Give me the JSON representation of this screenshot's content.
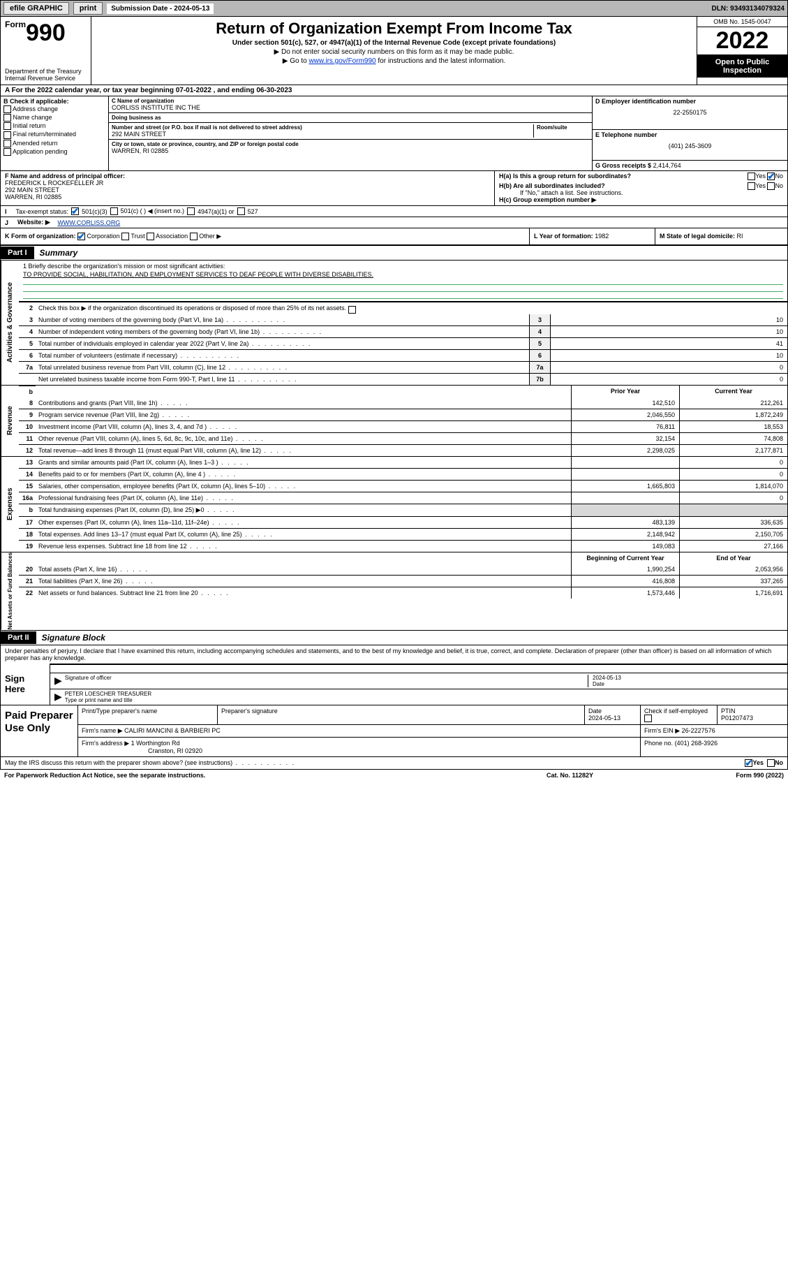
{
  "topbar": {
    "efile": "efile GRAPHIC",
    "print": "print",
    "submission": "Submission Date - 2024-05-13",
    "dln": "DLN: 93493134079324"
  },
  "header": {
    "form_prefix": "Form",
    "form_num": "990",
    "dept": "Department of the Treasury",
    "irs": "Internal Revenue Service",
    "title": "Return of Organization Exempt From Income Tax",
    "sub": "Under section 501(c), 527, or 4947(a)(1) of the Internal Revenue Code (except private foundations)",
    "note1": "▶ Do not enter social security numbers on this form as it may be made public.",
    "note2_pre": "▶ Go to ",
    "note2_link": "www.irs.gov/Form990",
    "note2_post": " for instructions and the latest information.",
    "omb": "OMB No. 1545-0047",
    "year": "2022",
    "otp": "Open to Public Inspection"
  },
  "a": {
    "text": "A For the 2022 calendar year, or tax year beginning 07-01-2022    , and ending 06-30-2023"
  },
  "b": {
    "hdr": "B Check if applicable:",
    "items": [
      "Address change",
      "Name change",
      "Initial return",
      "Final return/terminated",
      "Amended return",
      "Application pending"
    ]
  },
  "c": {
    "lbl_name": "C Name of organization",
    "name": "CORLISS INSTITUTE INC THE",
    "lbl_dba": "Doing business as",
    "dba": "",
    "lbl_addr": "Number and street (or P.O. box if mail is not delivered to street address)",
    "lbl_room": "Room/suite",
    "addr": "292 MAIN STREET",
    "lbl_city": "City or town, state or province, country, and ZIP or foreign postal code",
    "city": "WARREN, RI  02885"
  },
  "d": {
    "lbl": "D Employer identification number",
    "val": "22-2550175"
  },
  "e": {
    "lbl": "E Telephone number",
    "val": "(401) 245-3609"
  },
  "g": {
    "lbl": "G Gross receipts $",
    "val": "2,414,764"
  },
  "f": {
    "lbl": "F Name and address of principal officer:",
    "name": "FREDERICK L ROCKEFELLER JR",
    "addr": "292 MAIN STREET",
    "city": "WARREN, RI  02885"
  },
  "h": {
    "a_lbl": "H(a)  Is this a group return for subordinates?",
    "b_lbl": "H(b)  Are all subordinates included?",
    "b_note": "If \"No,\" attach a list. See instructions.",
    "c_lbl": "H(c)  Group exemption number ▶"
  },
  "i": {
    "lbl": "Tax-exempt status:",
    "c501c3": "501(c)(3)",
    "c501c": "501(c) (   ) ◀ (insert no.)",
    "c4947": "4947(a)(1) or",
    "c527": "527"
  },
  "j": {
    "lbl": "Website: ▶",
    "val": "WWW.CORLISS.ORG"
  },
  "k": {
    "lbl": "K Form of organization:",
    "corp": "Corporation",
    "trust": "Trust",
    "assoc": "Association",
    "other": "Other ▶"
  },
  "l": {
    "lbl": "L Year of formation:",
    "val": "1982"
  },
  "m": {
    "lbl": "M State of legal domicile:",
    "val": "RI"
  },
  "part1": {
    "tab": "Part I",
    "title": "Summary"
  },
  "mission": {
    "lbl": "1   Briefly describe the organization's mission or most significant activities:",
    "text": "TO PROVIDE SOCIAL, HABILITATION, AND EMPLOYMENT SERVICES TO DEAF PEOPLE WITH DIVERSE DISABILITIES."
  },
  "gov": {
    "tab": "Activities & Governance",
    "l2": "Check this box ▶        if the organization discontinued its operations or disposed of more than 25% of its net assets.",
    "rows": [
      {
        "n": "3",
        "t": "Number of voting members of the governing body (Part VI, line 1a)",
        "b": "3",
        "v": "10"
      },
      {
        "n": "4",
        "t": "Number of independent voting members of the governing body (Part VI, line 1b)",
        "b": "4",
        "v": "10"
      },
      {
        "n": "5",
        "t": "Total number of individuals employed in calendar year 2022 (Part V, line 2a)",
        "b": "5",
        "v": "41"
      },
      {
        "n": "6",
        "t": "Total number of volunteers (estimate if necessary)",
        "b": "6",
        "v": "10"
      },
      {
        "n": "7a",
        "t": "Total unrelated business revenue from Part VIII, column (C), line 12",
        "b": "7a",
        "v": "0"
      },
      {
        "n": "",
        "t": "Net unrelated business taxable income from Form 990-T, Part I, line 11",
        "b": "7b",
        "v": "0"
      }
    ]
  },
  "hdrs": {
    "prior": "Prior Year",
    "current": "Current Year",
    "begin": "Beginning of Current Year",
    "end": "End of Year"
  },
  "rev": {
    "tab": "Revenue",
    "rows": [
      {
        "n": "8",
        "t": "Contributions and grants (Part VIII, line 1h)",
        "p": "142,510",
        "c": "212,261"
      },
      {
        "n": "9",
        "t": "Program service revenue (Part VIII, line 2g)",
        "p": "2,046,550",
        "c": "1,872,249"
      },
      {
        "n": "10",
        "t": "Investment income (Part VIII, column (A), lines 3, 4, and 7d )",
        "p": "76,811",
        "c": "18,553"
      },
      {
        "n": "11",
        "t": "Other revenue (Part VIII, column (A), lines 5, 6d, 8c, 9c, 10c, and 11e)",
        "p": "32,154",
        "c": "74,808"
      },
      {
        "n": "12",
        "t": "Total revenue—add lines 8 through 11 (must equal Part VIII, column (A), line 12)",
        "p": "2,298,025",
        "c": "2,177,871"
      }
    ]
  },
  "exp": {
    "tab": "Expenses",
    "rows": [
      {
        "n": "13",
        "t": "Grants and similar amounts paid (Part IX, column (A), lines 1–3 )",
        "p": "",
        "c": "0"
      },
      {
        "n": "14",
        "t": "Benefits paid to or for members (Part IX, column (A), line 4 )",
        "p": "",
        "c": "0"
      },
      {
        "n": "15",
        "t": "Salaries, other compensation, employee benefits (Part IX, column (A), lines 5–10)",
        "p": "1,665,803",
        "c": "1,814,070"
      },
      {
        "n": "16a",
        "t": "Professional fundraising fees (Part IX, column (A), line 11e)",
        "p": "",
        "c": "0"
      },
      {
        "n": "b",
        "t": "Total fundraising expenses (Part IX, column (D), line 25) ▶0",
        "p": "",
        "c": "",
        "shade": true
      },
      {
        "n": "17",
        "t": "Other expenses (Part IX, column (A), lines 11a–11d, 11f–24e)",
        "p": "483,139",
        "c": "336,635"
      },
      {
        "n": "18",
        "t": "Total expenses. Add lines 13–17 (must equal Part IX, column (A), line 25)",
        "p": "2,148,942",
        "c": "2,150,705"
      },
      {
        "n": "19",
        "t": "Revenue less expenses. Subtract line 18 from line 12",
        "p": "149,083",
        "c": "27,166"
      }
    ]
  },
  "net": {
    "tab": "Net Assets or Fund Balances",
    "rows": [
      {
        "n": "20",
        "t": "Total assets (Part X, line 16)",
        "p": "1,990,254",
        "c": "2,053,956"
      },
      {
        "n": "21",
        "t": "Total liabilities (Part X, line 26)",
        "p": "416,808",
        "c": "337,265"
      },
      {
        "n": "22",
        "t": "Net assets or fund balances. Subtract line 21 from line 20",
        "p": "1,573,446",
        "c": "1,716,691"
      }
    ]
  },
  "part2": {
    "tab": "Part II",
    "title": "Signature Block"
  },
  "sig": {
    "decl": "Under penalties of perjury, I declare that I have examined this return, including accompanying schedules and statements, and to the best of my knowledge and belief, it is true, correct, and complete. Declaration of preparer (other than officer) is based on all information of which preparer has any knowledge.",
    "here": "Sign Here",
    "sig_lbl": "Signature of officer",
    "date_lbl": "Date",
    "date": "2024-05-13",
    "name": "PETER LOESCHER  TREASURER",
    "name_lbl": "Type or print name and title"
  },
  "prep": {
    "left": "Paid Preparer Use Only",
    "h_print": "Print/Type preparer's name",
    "h_sig": "Preparer's signature",
    "h_date": "Date",
    "date": "2024-05-13",
    "h_check": "Check        if self-employed",
    "h_ptin": "PTIN",
    "ptin": "P01207473",
    "firm_lbl": "Firm's name     ▶",
    "firm": "CALIRI MANCINI & BARBIERI PC",
    "ein_lbl": "Firm's EIN ▶",
    "ein": "26-2227576",
    "addr_lbl": "Firm's address ▶",
    "addr1": "1 Worthington Rd",
    "addr2": "Cranston, RI  02920",
    "phone_lbl": "Phone no.",
    "phone": "(401) 268-3926"
  },
  "footer": {
    "q": "May the IRS discuss this return with the preparer shown above? (see instructions)",
    "yes": "Yes",
    "no": "No"
  },
  "bottom": {
    "pra": "For Paperwork Reduction Act Notice, see the separate instructions.",
    "cat": "Cat. No. 11282Y",
    "form": "Form 990 (2022)"
  }
}
